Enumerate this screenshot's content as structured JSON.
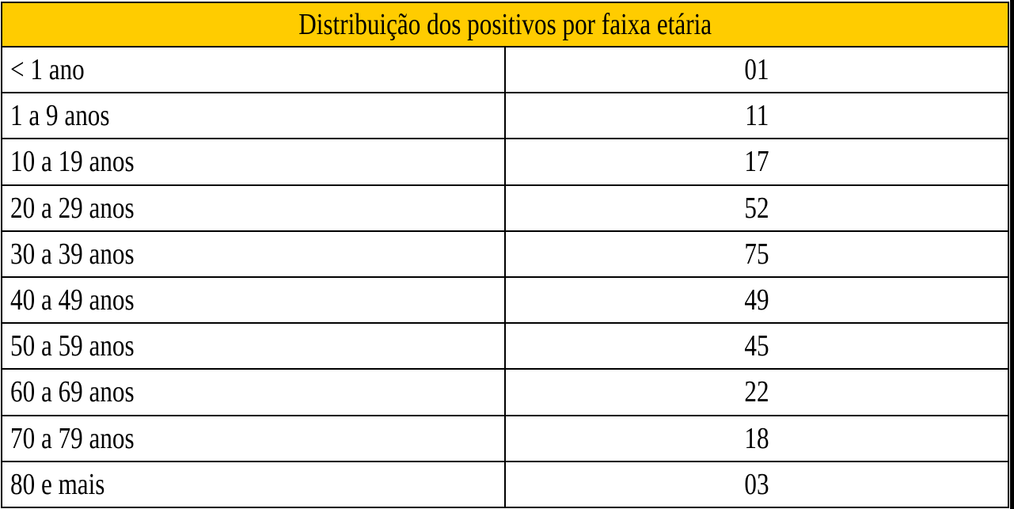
{
  "table": {
    "title": "Distribuição dos positivos por faixa etária",
    "rows": [
      {
        "age_group": "< 1 ano",
        "count": "01"
      },
      {
        "age_group": "1 a 9 anos",
        "count": "11"
      },
      {
        "age_group": "10 a 19 anos",
        "count": "17"
      },
      {
        "age_group": "20 a 29 anos",
        "count": "52"
      },
      {
        "age_group": "30 a 39 anos",
        "count": "75"
      },
      {
        "age_group": "40 a 49 anos",
        "count": "49"
      },
      {
        "age_group": "50 a 59 anos",
        "count": "45"
      },
      {
        "age_group": "60 a 69 anos",
        "count": "22"
      },
      {
        "age_group": "70 a 79 anos",
        "count": "18"
      },
      {
        "age_group": "80 e mais",
        "count": "03"
      }
    ]
  },
  "colors": {
    "header_background": "#ffcc00",
    "border": "#000000",
    "text": "#000000"
  }
}
